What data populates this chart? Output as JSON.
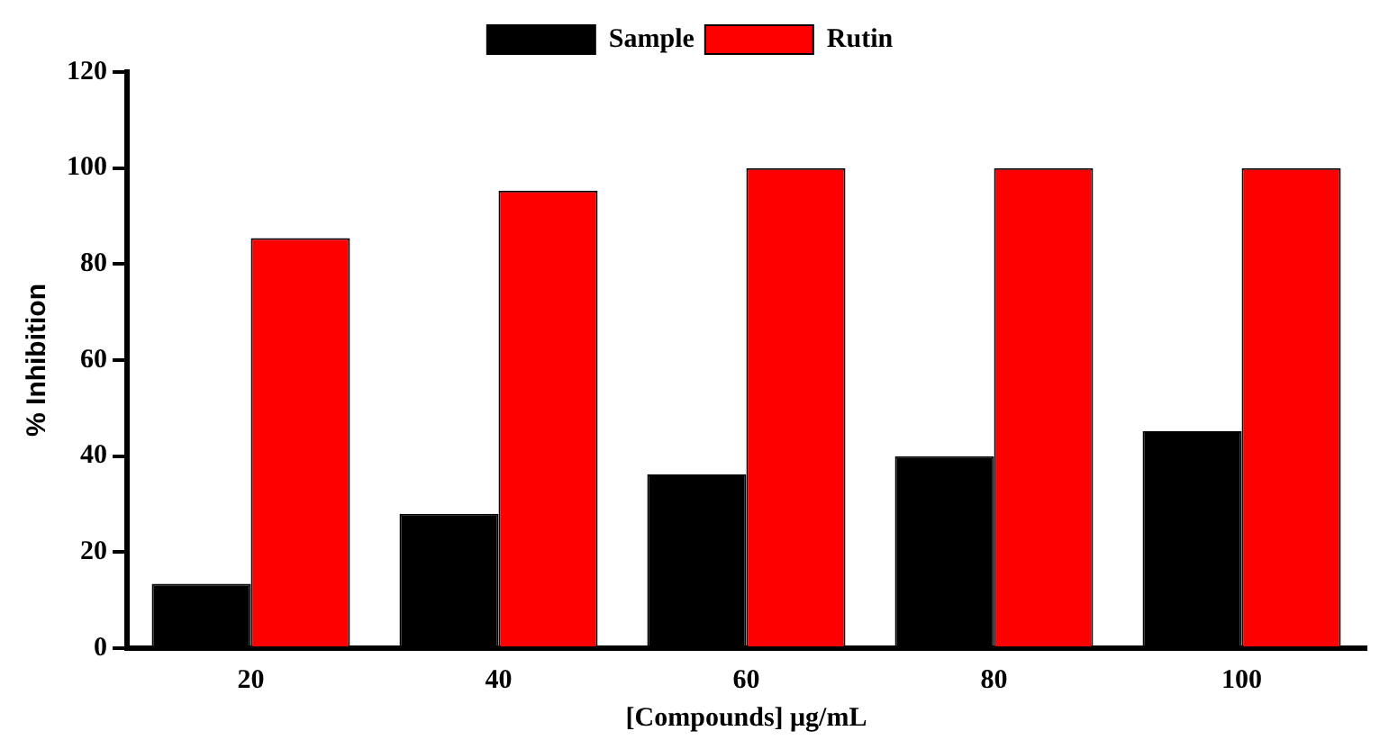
{
  "chart_data": {
    "type": "bar",
    "xlabel": "[Compounds] μg/mL",
    "ylabel": "% Inhibition",
    "categories": [
      "20",
      "40",
      "60",
      "80",
      "100"
    ],
    "series": [
      {
        "name": "Sample",
        "color": "#000000",
        "values": [
          13.4,
          28,
          36.2,
          40,
          45.2
        ]
      },
      {
        "name": "Rutin",
        "color": "#ff0000",
        "values": [
          85.4,
          95.3,
          100,
          100,
          100
        ]
      }
    ],
    "ylim": [
      0,
      120
    ],
    "yticks": [
      0,
      20,
      40,
      60,
      80,
      100,
      120
    ],
    "grid": false,
    "legend": "top"
  }
}
